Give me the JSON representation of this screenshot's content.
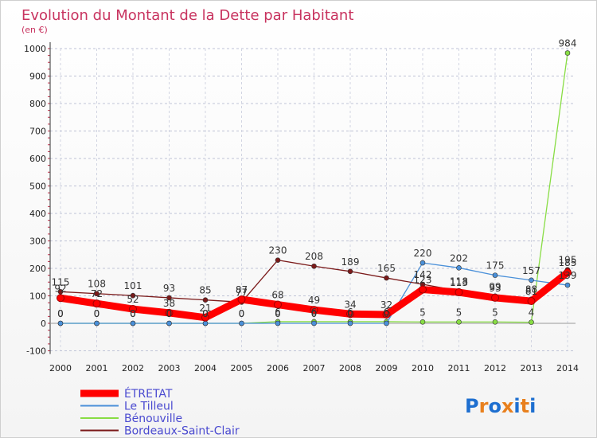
{
  "chart_data": {
    "type": "line",
    "title": "Evolution du Montant de la Dette par Habitant",
    "subtitle": "(en €)",
    "x": [
      2000,
      2001,
      2002,
      2003,
      2004,
      2005,
      2006,
      2007,
      2008,
      2009,
      2010,
      2011,
      2012,
      2013,
      2014
    ],
    "ylim": [
      -100,
      1000
    ],
    "yticks": [
      -100,
      0,
      100,
      200,
      300,
      400,
      500,
      600,
      700,
      800,
      900,
      1000
    ],
    "grid": true,
    "legend_position": "bottom-left",
    "series": [
      {
        "name": "ÉTRETAT",
        "color": "#ff0000",
        "values": [
          92,
          72,
          52,
          38,
          21,
          87,
          68,
          49,
          34,
          32,
          123,
          113,
          93,
          81,
          185
        ]
      },
      {
        "name": "Le Tilleul",
        "color": "#4a90d9",
        "values": [
          0,
          0,
          0,
          0,
          0,
          0,
          0,
          0,
          0,
          0,
          220,
          202,
          175,
          157,
          139
        ]
      },
      {
        "name": "Bénouville",
        "color": "#88dd44",
        "values": [
          0,
          0,
          0,
          0,
          0,
          0,
          6,
          6,
          6,
          6,
          5,
          5,
          5,
          4,
          984
        ]
      },
      {
        "name": "Bordeaux-Saint-Clair",
        "color": "#7b1a1a",
        "values": [
          115,
          108,
          101,
          93,
          85,
          77,
          230,
          208,
          189,
          165,
          142,
          118,
          99,
          88,
          195
        ]
      }
    ]
  },
  "branding": {
    "logo_text": "Proxiti"
  }
}
